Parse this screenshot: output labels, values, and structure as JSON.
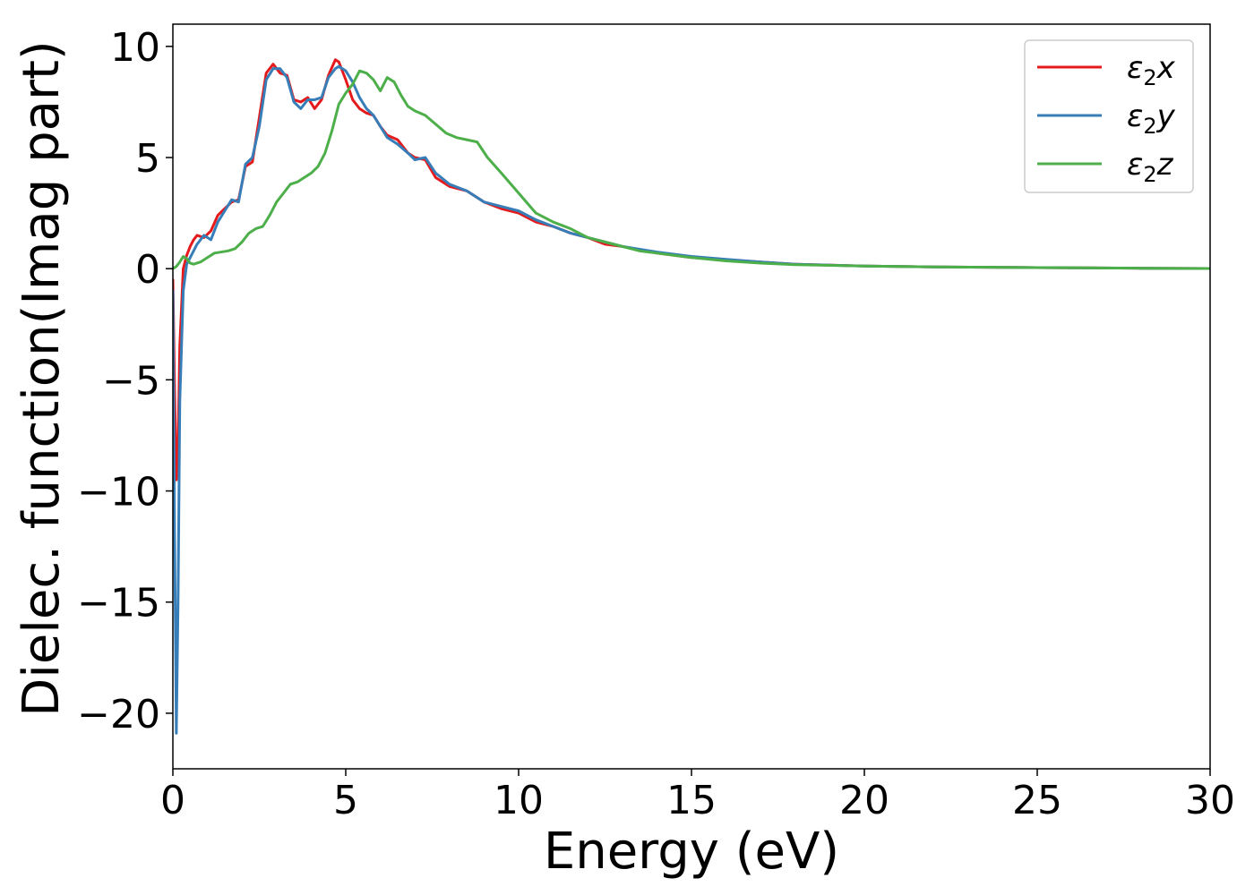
{
  "chart_data": {
    "type": "line",
    "title": "",
    "xlabel": "Energy (eV)",
    "ylabel": "Dielec. function(Imag part)",
    "xlim": [
      0,
      30
    ],
    "ylim": [
      -22.5,
      11
    ],
    "xticks": [
      0,
      5,
      10,
      15,
      20,
      25,
      30
    ],
    "xtick_labels": [
      "0",
      "5",
      "10",
      "15",
      "20",
      "25",
      "30"
    ],
    "yticks": [
      10,
      5,
      0,
      -5,
      -10,
      -15,
      -20
    ],
    "ytick_labels": [
      "10",
      "5",
      "0",
      "−5",
      "−10",
      "−15",
      "−20"
    ],
    "grid": false,
    "legend_position": "top-right",
    "series": [
      {
        "name": "ε₂x",
        "legend_base": "ε",
        "legend_sub": "2",
        "legend_var": "x",
        "color": "#e41a1c",
        "x": [
          0,
          0.05,
          0.1,
          0.15,
          0.2,
          0.3,
          0.4,
          0.5,
          0.6,
          0.7,
          0.9,
          1.1,
          1.3,
          1.5,
          1.7,
          1.9,
          2.1,
          2.3,
          2.5,
          2.7,
          2.9,
          3.1,
          3.3,
          3.5,
          3.7,
          3.9,
          4.1,
          4.3,
          4.5,
          4.7,
          4.8,
          5.0,
          5.2,
          5.4,
          5.6,
          5.8,
          6.0,
          6.2,
          6.5,
          6.8,
          7.0,
          7.3,
          7.6,
          8.0,
          8.5,
          9.0,
          9.5,
          10.0,
          10.5,
          11.0,
          11.5,
          12.0,
          12.5,
          13.0,
          14.0,
          15.0,
          16.0,
          17.0,
          18.0,
          20.0,
          22.0,
          25.0,
          28.0,
          30.0
        ],
        "y": [
          -0.5,
          -5.5,
          -9.5,
          -8.0,
          -3.5,
          0.0,
          0.6,
          1.0,
          1.3,
          1.5,
          1.4,
          1.7,
          2.4,
          2.7,
          3.0,
          3.1,
          4.6,
          4.8,
          6.8,
          8.8,
          9.2,
          8.8,
          8.7,
          7.6,
          7.5,
          7.7,
          7.2,
          7.6,
          8.7,
          9.4,
          9.3,
          8.5,
          7.6,
          7.2,
          7.0,
          6.9,
          6.4,
          6.0,
          5.8,
          5.2,
          5.0,
          4.9,
          4.1,
          3.7,
          3.5,
          3.0,
          2.7,
          2.5,
          2.1,
          1.9,
          1.6,
          1.4,
          1.1,
          1.0,
          0.7,
          0.5,
          0.4,
          0.3,
          0.2,
          0.12,
          0.08,
          0.05,
          0.02,
          0.01
        ]
      },
      {
        "name": "ε₂y",
        "legend_base": "ε",
        "legend_sub": "2",
        "legend_var": "y",
        "color": "#377eb8",
        "x": [
          0,
          0.05,
          0.1,
          0.15,
          0.2,
          0.3,
          0.4,
          0.5,
          0.6,
          0.7,
          0.9,
          1.1,
          1.3,
          1.5,
          1.7,
          1.9,
          2.1,
          2.3,
          2.5,
          2.7,
          2.9,
          3.1,
          3.3,
          3.5,
          3.7,
          3.9,
          4.1,
          4.3,
          4.5,
          4.7,
          4.8,
          5.0,
          5.2,
          5.4,
          5.6,
          5.8,
          6.0,
          6.2,
          6.5,
          6.8,
          7.0,
          7.3,
          7.6,
          8.0,
          8.5,
          9.0,
          9.5,
          10.0,
          10.5,
          11.0,
          11.5,
          12.0,
          12.5,
          13.0,
          14.0,
          15.0,
          16.0,
          17.0,
          18.0,
          20.0,
          22.0,
          25.0,
          28.0,
          30.0
        ],
        "y": [
          -1.0,
          -12.0,
          -20.9,
          -15.0,
          -6.0,
          -1.0,
          0.2,
          0.5,
          0.8,
          1.1,
          1.5,
          1.3,
          2.1,
          2.6,
          3.1,
          3.0,
          4.7,
          5.0,
          6.4,
          8.5,
          9.0,
          9.0,
          8.6,
          7.5,
          7.2,
          7.6,
          7.6,
          7.7,
          8.6,
          9.0,
          9.1,
          8.9,
          8.4,
          7.7,
          7.2,
          6.9,
          6.4,
          5.9,
          5.6,
          5.2,
          4.9,
          5.0,
          4.3,
          3.8,
          3.5,
          3.0,
          2.8,
          2.6,
          2.2,
          1.9,
          1.6,
          1.4,
          1.2,
          1.0,
          0.75,
          0.55,
          0.42,
          0.3,
          0.2,
          0.12,
          0.08,
          0.05,
          0.02,
          0.01
        ]
      },
      {
        "name": "ε₂z",
        "legend_base": "ε",
        "legend_sub": "2",
        "legend_var": "z",
        "color": "#4daf4a",
        "x": [
          0,
          0.1,
          0.2,
          0.3,
          0.4,
          0.5,
          0.6,
          0.8,
          1.0,
          1.2,
          1.4,
          1.6,
          1.8,
          2.0,
          2.2,
          2.4,
          2.6,
          2.8,
          3.0,
          3.2,
          3.4,
          3.6,
          3.8,
          4.0,
          4.2,
          4.4,
          4.6,
          4.8,
          5.0,
          5.2,
          5.4,
          5.6,
          5.8,
          6.0,
          6.2,
          6.4,
          6.6,
          6.8,
          7.0,
          7.3,
          7.6,
          7.9,
          8.2,
          8.5,
          8.8,
          9.1,
          9.5,
          10.0,
          10.5,
          11.0,
          11.5,
          12.0,
          12.5,
          13.0,
          13.5,
          14.0,
          15.0,
          16.0,
          17.0,
          18.0,
          20.0,
          22.0,
          25.0,
          28.0,
          30.0
        ],
        "y": [
          0.0,
          0.1,
          0.3,
          0.55,
          0.45,
          0.25,
          0.2,
          0.3,
          0.5,
          0.7,
          0.75,
          0.8,
          0.9,
          1.2,
          1.6,
          1.8,
          1.9,
          2.4,
          3.0,
          3.4,
          3.8,
          3.9,
          4.1,
          4.3,
          4.6,
          5.2,
          6.2,
          7.4,
          7.9,
          8.3,
          8.9,
          8.8,
          8.5,
          8.0,
          8.6,
          8.4,
          7.8,
          7.3,
          7.1,
          6.9,
          6.5,
          6.1,
          5.9,
          5.8,
          5.7,
          5.0,
          4.3,
          3.4,
          2.5,
          2.1,
          1.8,
          1.4,
          1.2,
          1.0,
          0.8,
          0.7,
          0.5,
          0.35,
          0.25,
          0.18,
          0.12,
          0.08,
          0.05,
          0.02,
          0.01
        ]
      }
    ]
  }
}
